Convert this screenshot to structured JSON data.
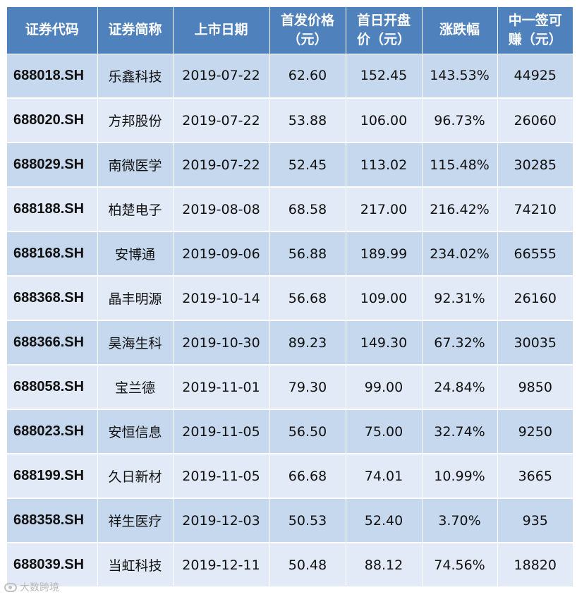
{
  "table": {
    "headers": [
      [
        "证券代码"
      ],
      [
        "证券简称"
      ],
      [
        "上市日期"
      ],
      [
        "首发价格",
        "（元）"
      ],
      [
        "首日开盘",
        "价（元）"
      ],
      [
        "涨跌幅"
      ],
      [
        "中一签可",
        "赚（元）"
      ]
    ],
    "rows": [
      [
        "688018.SH",
        "乐鑫科技",
        "2019-07-22",
        "62.60",
        "152.45",
        "143.53%",
        "44925"
      ],
      [
        "688020.SH",
        "方邦股份",
        "2019-07-22",
        "53.88",
        "106.00",
        "96.73%",
        "26060"
      ],
      [
        "688029.SH",
        "南微医学",
        "2019-07-22",
        "52.45",
        "113.02",
        "115.48%",
        "30285"
      ],
      [
        "688188.SH",
        "柏楚电子",
        "2019-08-08",
        "68.58",
        "217.00",
        "216.42%",
        "74210"
      ],
      [
        "688168.SH",
        "安博通",
        "2019-09-06",
        "56.88",
        "189.99",
        "234.02%",
        "66555"
      ],
      [
        "688368.SH",
        "晶丰明源",
        "2019-10-14",
        "56.68",
        "109.00",
        "92.31%",
        "26160"
      ],
      [
        "688366.SH",
        "昊海生科",
        "2019-10-30",
        "89.23",
        "149.30",
        "67.32%",
        "30035"
      ],
      [
        "688058.SH",
        "宝兰德",
        "2019-11-01",
        "79.30",
        "99.00",
        "24.84%",
        "9850"
      ],
      [
        "688023.SH",
        "安恒信息",
        "2019-11-05",
        "56.50",
        "75.00",
        "32.74%",
        "9250"
      ],
      [
        "688199.SH",
        "久日新材",
        "2019-11-05",
        "66.68",
        "74.01",
        "10.99%",
        "3665"
      ],
      [
        "688358.SH",
        "祥生医疗",
        "2019-12-03",
        "50.53",
        "52.40",
        "3.70%",
        "935"
      ],
      [
        "688039.SH",
        "当虹科技",
        "2019-12-11",
        "50.48",
        "88.12",
        "74.56%",
        "18820"
      ]
    ]
  },
  "watermark": {
    "text": "大数跨境",
    "icon": "camera-logo-icon"
  },
  "colors": {
    "header_bg": "#4f81bd",
    "row_dark": "#c6d8ee",
    "row_light": "#e1eaf6"
  }
}
